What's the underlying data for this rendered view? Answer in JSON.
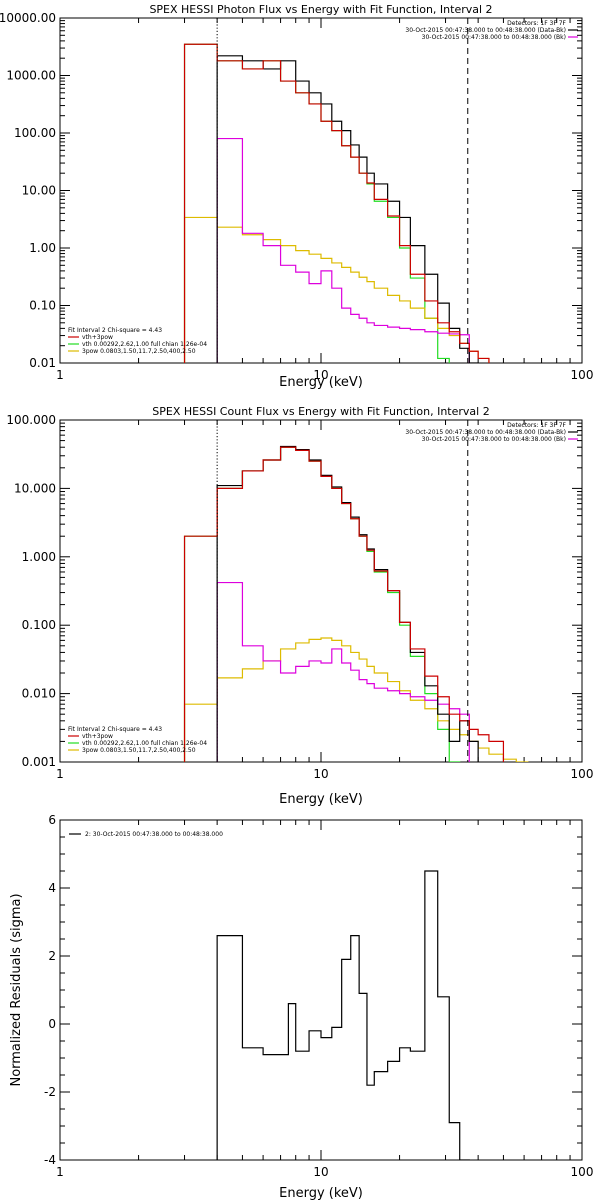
{
  "colors": {
    "data": "#000000",
    "vth_3pow": "#cc0000",
    "vth": "#22dd22",
    "3pow": "#ddbb00",
    "bk": "#dd00dd"
  },
  "chart_data": [
    {
      "type": "line",
      "title": "SPEX HESSI Photon Flux vs Energy with Fit Function, Interval 2",
      "xlabel": "Energy (keV)",
      "ylabel": "",
      "xscale": "log",
      "yscale": "log",
      "xlim": [
        1,
        100
      ],
      "ylim": [
        0.01,
        10000
      ],
      "x_ticks": [
        {
          "v": 1,
          "t": "1"
        },
        {
          "v": 10,
          "t": "10"
        },
        {
          "v": 100,
          "t": "100"
        }
      ],
      "y_ticks": [
        {
          "v": 0.01,
          "t": "0.01"
        },
        {
          "v": 0.1,
          "t": "0.10"
        },
        {
          "v": 1,
          "t": "1.00"
        },
        {
          "v": 10,
          "t": "10.00"
        },
        {
          "v": 100,
          "t": "100.00"
        },
        {
          "v": 1000,
          "t": "1000.00"
        },
        {
          "v": 10000,
          "t": "10000.00"
        }
      ],
      "vlines": [
        {
          "x": 4.0,
          "style": "dotted"
        },
        {
          "x": 36.5,
          "style": "dashed"
        }
      ],
      "header": [
        "Detectors: 1F 3F 7F",
        "30-Oct-2015 00:47:38.000 to 00:48:38.000 (Data-Bk)",
        "30-Oct-2015 00:47:38.000 to 00:48:38.000 (Bk)"
      ],
      "fit_info": [
        "Fit Interval 2   Chi-square = 4.43",
        "vth+3pow",
        "vth 0.00292,2.62,1.00  full chian 1.26e-04",
        "3pow 0.0803,1.50,11.7,2.50,400,2.50"
      ],
      "edges": [
        3.0,
        4.0,
        5.0,
        6.0,
        7.0,
        8.0,
        9.0,
        10.0,
        11.0,
        12.0,
        13.0,
        14.0,
        15.0,
        16.0,
        18.0,
        20.0,
        22.0,
        25.0,
        28.0,
        31.0,
        34.0,
        37.0,
        40.0,
        44.0,
        50.0
      ],
      "series": [
        {
          "name": "vth",
          "key": "vth",
          "values": [
            3500,
            1800,
            1300,
            1800,
            800,
            500,
            320,
            160,
            110,
            60,
            38,
            20,
            13,
            6.5,
            3.4,
            1.0,
            0.3,
            0.06,
            0.012
          ]
        },
        {
          "name": "3pow",
          "key": "3pow",
          "values": [
            3.4,
            2.3,
            1.7,
            1.4,
            1.1,
            0.9,
            0.78,
            0.66,
            0.55,
            0.46,
            0.38,
            0.31,
            0.26,
            0.2,
            0.15,
            0.12,
            0.09,
            0.06,
            0.04,
            0.03,
            0.022,
            0.016,
            0.012,
            0.009
          ]
        },
        {
          "name": "Bk",
          "key": "bk",
          "values": [
            null,
            80,
            1.8,
            1.1,
            0.5,
            0.38,
            0.24,
            0.4,
            0.2,
            0.09,
            0.07,
            0.06,
            0.05,
            0.045,
            0.042,
            0.04,
            0.038,
            0.035,
            0.033,
            0.032,
            0.031
          ]
        },
        {
          "name": "Data-Bk",
          "key": "data",
          "values": [
            null,
            2200,
            1800,
            1300,
            1800,
            800,
            500,
            320,
            160,
            110,
            62,
            38,
            20,
            13,
            6.5,
            3.4,
            1.1,
            0.35,
            0.11,
            0.04,
            0.018,
            0.01
          ]
        },
        {
          "name": "vth+3pow",
          "key": "vth_3pow",
          "values": [
            3500,
            1800,
            1300,
            1800,
            800,
            500,
            320,
            160,
            110,
            60,
            38,
            20,
            13.5,
            7,
            3.6,
            1.1,
            0.35,
            0.12,
            0.05,
            0.035,
            0.022,
            0.016,
            0.012,
            0.009
          ]
        }
      ]
    },
    {
      "type": "line",
      "title": "SPEX HESSI Count Flux vs Energy with Fit Function, Interval 2",
      "xlabel": "Energy (keV)",
      "ylabel": "",
      "xscale": "log",
      "yscale": "log",
      "xlim": [
        1,
        100
      ],
      "ylim": [
        0.001,
        100
      ],
      "x_ticks": [
        {
          "v": 1,
          "t": "1"
        },
        {
          "v": 10,
          "t": "10"
        },
        {
          "v": 100,
          "t": "100"
        }
      ],
      "y_ticks": [
        {
          "v": 0.001,
          "t": "0.001"
        },
        {
          "v": 0.01,
          "t": "0.010"
        },
        {
          "v": 0.1,
          "t": "0.100"
        },
        {
          "v": 1,
          "t": "1.000"
        },
        {
          "v": 10,
          "t": "10.000"
        },
        {
          "v": 100,
          "t": "100.000"
        }
      ],
      "vlines": [
        {
          "x": 4.0,
          "style": "dotted"
        },
        {
          "x": 36.5,
          "style": "dashed"
        }
      ],
      "header": [
        "Detectors: 1F 3F 7F",
        "30-Oct-2015 00:47:38.000 to 00:48:38.000 (Data-Bk)",
        "30-Oct-2015 00:47:38.000 to 00:48:38.000 (Bk)"
      ],
      "fit_info": [
        "Fit Interval 2   Chi-square = 4.43",
        "vth+3pow",
        "vth 0.00292,2.62,1.00  full chian 1.26e-04",
        "3pow 0.0803,1.50,11.7,2.50,400,2.50"
      ],
      "edges": [
        3.0,
        4.0,
        5.0,
        6.0,
        7.0,
        8.0,
        9.0,
        10.0,
        11.0,
        12.0,
        13.0,
        14.0,
        15.0,
        16.0,
        18.0,
        20.0,
        22.0,
        25.0,
        28.0,
        31.0,
        34.0,
        37.0,
        40.0,
        44.0,
        50.0,
        56.0,
        62.0
      ],
      "series": [
        {
          "name": "vth",
          "key": "vth",
          "values": [
            2.0,
            10,
            18,
            26,
            40,
            36,
            25,
            15,
            10,
            6,
            3.6,
            2,
            1.2,
            0.6,
            0.3,
            0.1,
            0.035,
            0.01,
            0.003,
            0.001
          ]
        },
        {
          "name": "3pow",
          "key": "3pow",
          "values": [
            0.007,
            0.017,
            0.023,
            0.03,
            0.045,
            0.055,
            0.062,
            0.065,
            0.06,
            0.05,
            0.04,
            0.032,
            0.025,
            0.02,
            0.015,
            0.011,
            0.008,
            0.006,
            0.004,
            0.003,
            0.0025,
            0.002,
            0.0016,
            0.0013,
            0.0011,
            0.001
          ]
        },
        {
          "name": "Bk",
          "key": "bk",
          "values": [
            null,
            0.42,
            0.05,
            0.03,
            0.02,
            0.025,
            0.03,
            0.028,
            0.045,
            0.028,
            0.022,
            0.016,
            0.014,
            0.012,
            0.011,
            0.01,
            0.009,
            0.008,
            0.007,
            0.006,
            0.005
          ]
        },
        {
          "name": "Data-Bk",
          "key": "data",
          "values": [
            null,
            11,
            18,
            26,
            41,
            37,
            26,
            15.5,
            10.5,
            6.2,
            3.8,
            2.1,
            1.3,
            0.65,
            0.32,
            0.11,
            0.04,
            0.013,
            0.005,
            0.002,
            0.004,
            0.002
          ]
        },
        {
          "name": "vth+3pow",
          "key": "vth_3pow",
          "values": [
            2.0,
            10,
            18,
            26,
            40,
            36,
            25,
            15,
            10,
            6,
            3.6,
            2,
            1.25,
            0.62,
            0.32,
            0.11,
            0.045,
            0.018,
            0.009,
            0.005,
            0.004,
            0.003,
            0.0025,
            0.002
          ]
        }
      ]
    },
    {
      "type": "line",
      "title": "",
      "xlabel": "Energy (keV)",
      "ylabel": "Normalized Residuals (sigma)",
      "xscale": "log",
      "yscale": "linear",
      "xlim": [
        1,
        100
      ],
      "ylim": [
        -4,
        6
      ],
      "x_ticks": [
        {
          "v": 1,
          "t": "1"
        },
        {
          "v": 10,
          "t": "10"
        },
        {
          "v": 100,
          "t": "100"
        }
      ],
      "y_ticks": [
        {
          "v": -4,
          "t": "-4"
        },
        {
          "v": -2,
          "t": "-2"
        },
        {
          "v": 0,
          "t": "0"
        },
        {
          "v": 2,
          "t": "2"
        },
        {
          "v": 4,
          "t": "4"
        },
        {
          "v": 6,
          "t": "6"
        }
      ],
      "legend": "2: 30-Oct-2015 00:47:38.000 to 00:48:38.000",
      "edges": [
        4.0,
        5.0,
        6.0,
        7.0,
        7.5,
        8.0,
        8.5,
        9.0,
        10.0,
        11.0,
        12.0,
        13.0,
        14.0,
        15.0,
        16.0,
        18.0,
        20.0,
        22.0,
        25.0,
        28.0,
        31.0,
        34.0,
        37.0
      ],
      "series": [
        {
          "name": "residuals",
          "key": "data",
          "values": [
            2.6,
            -0.7,
            -0.9,
            -0.9,
            0.6,
            -0.8,
            -0.8,
            -0.2,
            -0.4,
            -0.1,
            1.9,
            2.6,
            0.9,
            -1.8,
            -1.4,
            -1.1,
            -0.7,
            -0.8,
            4.5,
            0.8,
            -2.9,
            -4.0
          ]
        }
      ]
    }
  ]
}
